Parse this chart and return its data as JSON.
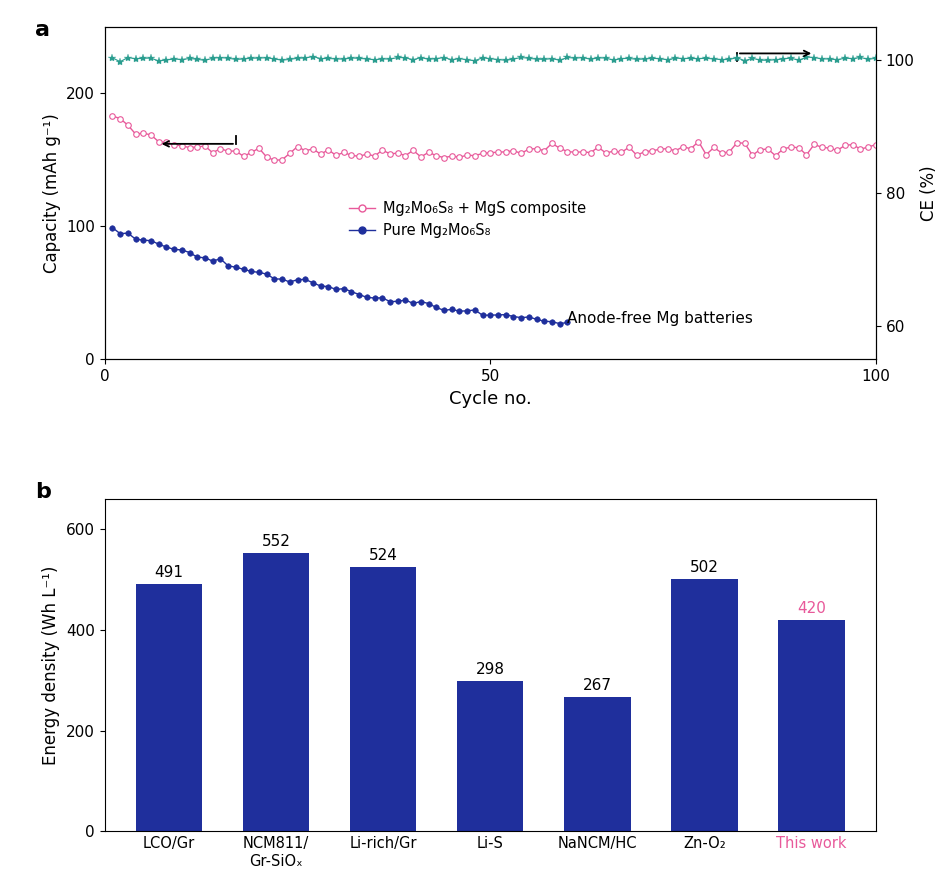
{
  "panel_a": {
    "title_label": "a",
    "xlabel": "Cycle no.",
    "ylabel_left": "Capacity (mAh g⁻¹)",
    "ylabel_right": "CE (%)",
    "xlim": [
      0,
      100
    ],
    "ylim_left": [
      0,
      250
    ],
    "ylim_right": [
      55,
      105
    ],
    "xticks": [
      0,
      50,
      100
    ],
    "yticks_left": [
      0,
      100,
      200
    ],
    "yticks_right": [
      60,
      80,
      100
    ],
    "annotation": "Anode-free Mg batteries",
    "pink_color": "#E8599A",
    "teal_color": "#2A9D8F",
    "navy_color": "#1F2F9C",
    "legend1": "Mg₂Mo₆S₈ + MgS composite",
    "legend2": "Pure Mg₂Mo₆S₈"
  },
  "panel_b": {
    "title_label": "b",
    "ylabel": "Energy density (Wh L⁻¹)",
    "categories": [
      "LCO/Gr",
      "NCM811/\nGr-SiOₓ",
      "Li-rich/Gr",
      "Li-S",
      "NaNCM/HC",
      "Zn-O₂",
      "This work"
    ],
    "values": [
      491,
      552,
      524,
      298,
      267,
      502,
      420
    ],
    "bar_color": "#1F2F9C",
    "last_label_color": "#E8599A",
    "ylim": [
      0,
      660
    ],
    "yticks": [
      0,
      200,
      400,
      600
    ]
  }
}
